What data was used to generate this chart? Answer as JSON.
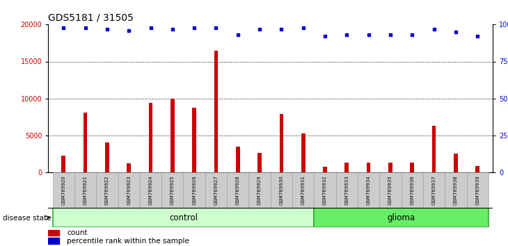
{
  "title": "GDS5181 / 31505",
  "samples": [
    "GSM769920",
    "GSM769921",
    "GSM769922",
    "GSM769923",
    "GSM769924",
    "GSM769925",
    "GSM769926",
    "GSM769927",
    "GSM769928",
    "GSM769929",
    "GSM769930",
    "GSM769931",
    "GSM769932",
    "GSM769933",
    "GSM769934",
    "GSM769935",
    "GSM769936",
    "GSM769937",
    "GSM769938",
    "GSM769939"
  ],
  "counts": [
    2200,
    8100,
    4000,
    1200,
    9400,
    10000,
    8700,
    16500,
    3500,
    2600,
    7900,
    5300,
    700,
    1300,
    1300,
    1300,
    1300,
    6300,
    2500,
    800
  ],
  "percentile_ranks": [
    98,
    98,
    97,
    96,
    98,
    97,
    98,
    98,
    93,
    97,
    97,
    98,
    92,
    93,
    93,
    93,
    93,
    97,
    95,
    92
  ],
  "bar_color": "#cc0000",
  "dot_color": "#0000cc",
  "ylim_left": [
    0,
    20000
  ],
  "ylim_right": [
    0,
    100
  ],
  "yticks_left": [
    0,
    5000,
    10000,
    15000,
    20000
  ],
  "yticks_right": [
    0,
    25,
    50,
    75,
    100
  ],
  "control_label": "control",
  "glioma_label": "glioma",
  "disease_state_label": "disease state",
  "legend_count_label": "count",
  "legend_pct_label": "percentile rank within the sample",
  "control_color": "#ccffcc",
  "glioma_color": "#66ee66",
  "bg_color": "#cccccc",
  "title_fontsize": 10,
  "tick_fontsize": 7,
  "label_fontsize": 8.5
}
